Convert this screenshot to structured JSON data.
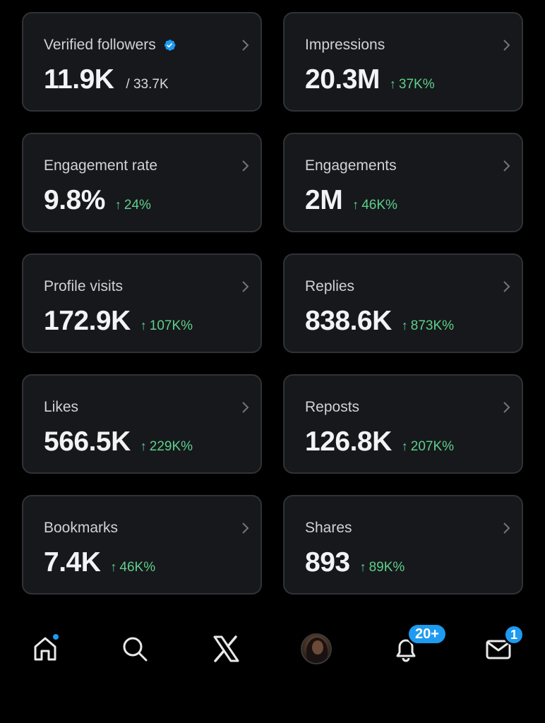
{
  "colors": {
    "background": "#000000",
    "card": "#16181c",
    "card_border": "#2f3336",
    "delta_green": "#5fcf8a",
    "accent_blue": "#1d9bf0"
  },
  "metrics": [
    {
      "label": "Verified followers",
      "value": "11.9K",
      "sub_value": "/ 33.7K",
      "verified_icon": "verified-badge-icon"
    },
    {
      "label": "Impressions",
      "value": "20.3M",
      "delta_arrow": "↑",
      "delta": "37K%"
    },
    {
      "label": "Engagement rate",
      "value": "9.8%",
      "delta_arrow": "↑",
      "delta": "24%"
    },
    {
      "label": "Engagements",
      "value": "2M",
      "delta_arrow": "↑",
      "delta": "46K%"
    },
    {
      "label": "Profile visits",
      "value": "172.9K",
      "delta_arrow": "↑",
      "delta": "107K%"
    },
    {
      "label": "Replies",
      "value": "838.6K",
      "delta_arrow": "↑",
      "delta": "873K%"
    },
    {
      "label": "Likes",
      "value": "566.5K",
      "delta_arrow": "↑",
      "delta": "229K%"
    },
    {
      "label": "Reposts",
      "value": "126.8K",
      "delta_arrow": "↑",
      "delta": "207K%"
    },
    {
      "label": "Bookmarks",
      "value": "7.4K",
      "delta_arrow": "↑",
      "delta": "46K%"
    },
    {
      "label": "Shares",
      "value": "893",
      "delta_arrow": "↑",
      "delta": "89K%"
    }
  ],
  "nav": {
    "items": [
      "home-icon",
      "search-icon",
      "x-logo-icon",
      "avatar",
      "bell-icon",
      "mail-icon"
    ],
    "notifications_badge": "20+",
    "messages_badge": "1"
  }
}
